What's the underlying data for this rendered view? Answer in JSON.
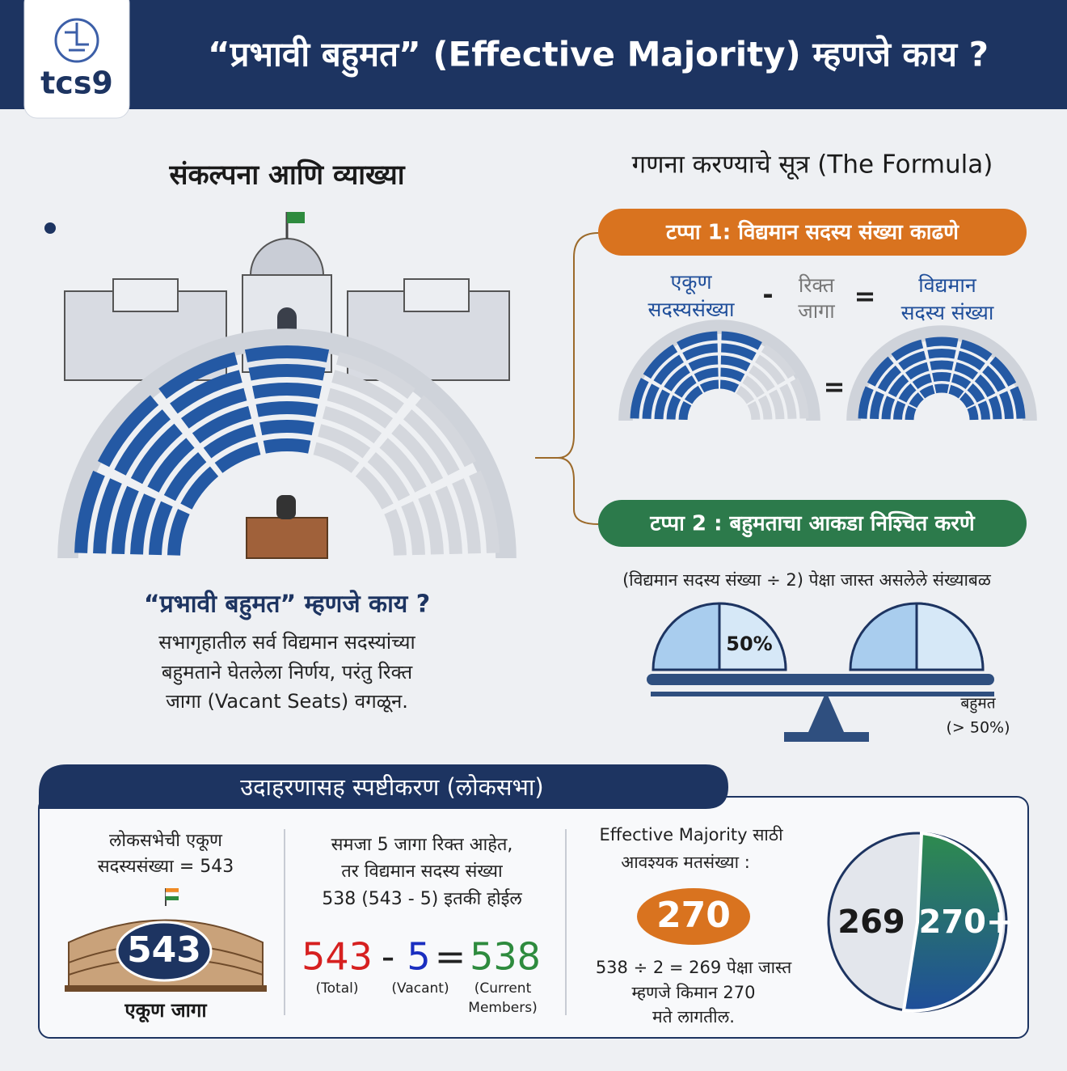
{
  "header": {
    "logo": "tcs9",
    "title": "“प्रभावी बहुमत” (Effective Majority) म्हणजे काय ?"
  },
  "concept": {
    "heading": "संकल्पना आणि व्याख्या",
    "question": "“प्रभावी बहुमत” म्हणजे काय ?",
    "definition": [
      "सभागृहातील सर्व विद्यमान सदस्यांच्या",
      "बहुमताने घेतलेला निर्णय, परंतु रिक्त",
      "जागा (Vacant Seats) वगळून."
    ]
  },
  "formula": {
    "heading": "गणना करण्याचे सूत्र (The Formula)",
    "step1": {
      "title": "टप्पा 1: विद्यमान सदस्य संख्या काढणे",
      "total": [
        "एकूण",
        "सदस्यसंख्या"
      ],
      "minus": "-",
      "vacant": [
        "रिक्त",
        "जागा"
      ],
      "equals": "=",
      "current": [
        "विद्यमान",
        "सदस्य संख्या"
      ]
    },
    "step2": {
      "title": "टप्पा 2 : बहुमताचा आकडा निश्चित करणे",
      "description": "(विद्यमान सदस्य संख्या ÷ 2) पेक्षा जास्त असलेले संख्याबळ",
      "half_label": "50%",
      "majority_label": "बहुमत",
      "majority_note": "(> 50%)"
    }
  },
  "example": {
    "heading": "उदाहरणासह स्पष्टीकरण (लोकसभा)",
    "total": {
      "text": [
        "लोकसभेची एकूण",
        "सदस्यसंख्या = 543"
      ],
      "badge": "543",
      "caption": "एकूण जागा"
    },
    "current": {
      "text": [
        "समजा 5 जागा रिक्त आहेत,",
        "तर विद्यमान सदस्य संख्या",
        "538 (543 - 5) इतकी होईल"
      ],
      "total": {
        "value": "543",
        "label": "(Total)"
      },
      "minus": "-",
      "vacant": {
        "value": "5",
        "label": "(Vacant)"
      },
      "equals": "=",
      "current": {
        "value": "538",
        "label": [
          "(Current",
          "Members)"
        ]
      }
    },
    "majority": {
      "text": [
        "Effective Majority साठी",
        "आवश्यक मतसंख्या :"
      ],
      "badge": "270",
      "note": [
        "538 ÷ 2 = 269 पेक्षा जास्त",
        "म्हणजे किमान 270",
        "मते लागतील."
      ],
      "pie_left": "269",
      "pie_right": "270+"
    }
  }
}
